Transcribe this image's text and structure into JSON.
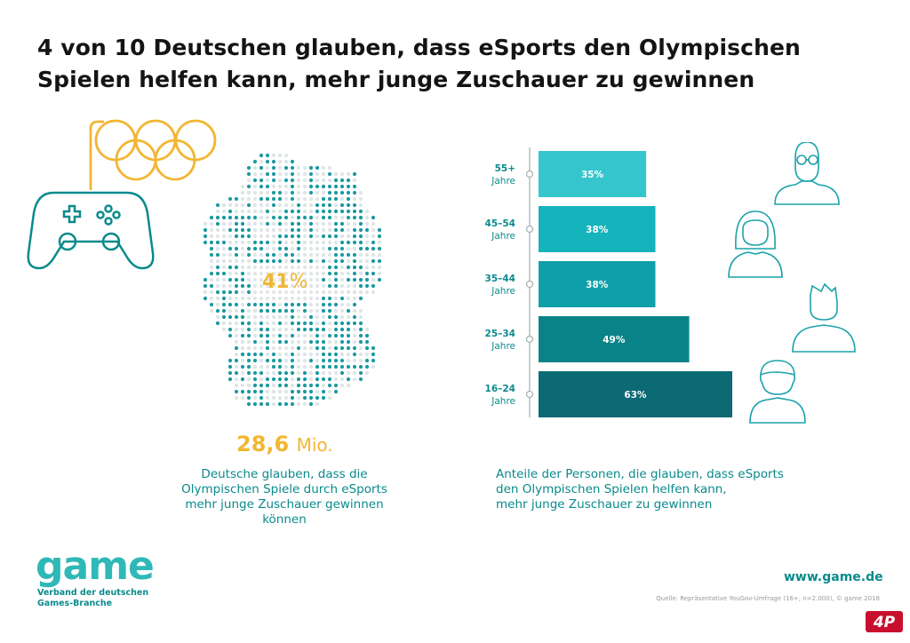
{
  "title_lines": [
    "4 von 10 Deutschen glauben, dass eSports den Olympischen",
    "Spielen helfen kann, mehr junge Zuschauer zu gewinnen"
  ],
  "map_stat": {
    "percent": "41",
    "percent_unit": "%"
  },
  "headline_stat": {
    "value": "28,6",
    "unit": "Mio."
  },
  "left_caption_lines": [
    "Deutsche glauben, dass die",
    "Olympischen Spiele durch eSports",
    "mehr junge Zuschauer gewinnen können"
  ],
  "chart_data": {
    "type": "bar",
    "orientation": "horizontal",
    "categories": [
      {
        "range": "55+",
        "unit": "Jahre"
      },
      {
        "range": "45–54",
        "unit": "Jahre"
      },
      {
        "range": "35–44",
        "unit": "Jahre"
      },
      {
        "range": "25–34",
        "unit": "Jahre"
      },
      {
        "range": "16–24",
        "unit": "Jahre"
      }
    ],
    "values": [
      35,
      38,
      38,
      49,
      63
    ],
    "value_labels": [
      "35%",
      "38%",
      "38%",
      "49%",
      "63%"
    ],
    "colors": [
      "#34c6cc",
      "#15b3bc",
      "#0ea0a8",
      "#0a8388",
      "#0b6a74"
    ]
  },
  "right_caption_lines": [
    "Anteile der Personen, die glauben, dass eSports",
    "den Olympischen Spielen helfen kann,",
    "mehr junge Zuschauer zu gewinnen"
  ],
  "footer": {
    "logo_text": "game",
    "logo_subtitle_lines": [
      "Verband der deutschen",
      "Games-Branche"
    ],
    "url": "www.game.de",
    "source": "Quelle: Repräsentative YouGov-Umfrage (16+; n=2.000), © game 2018",
    "brand_logo_text": "4P"
  },
  "colors": {
    "teal": "#0a8a8c",
    "yellow": "#f2b632",
    "dots": "#1a9aa0"
  },
  "icons": [
    "olympic-rings-icon",
    "gamepad-icon",
    "germany-map-icon",
    "elderly-person-icon",
    "woman-icon",
    "man-icon",
    "young-person-icon"
  ]
}
